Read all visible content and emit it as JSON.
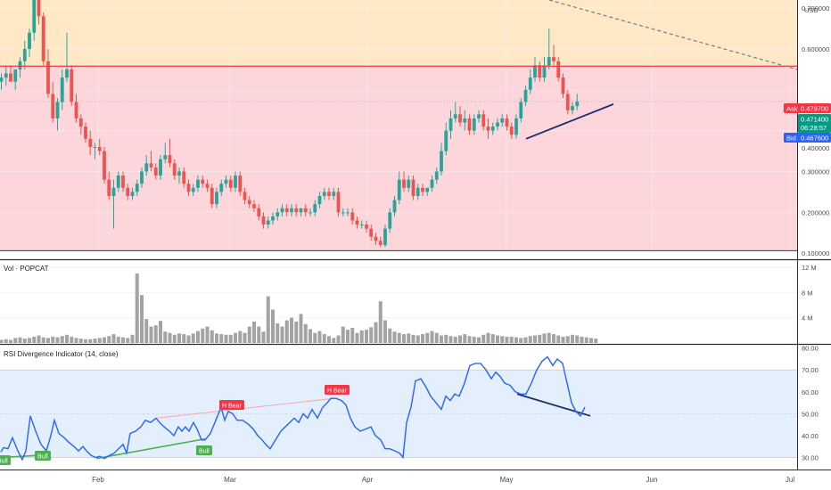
{
  "chart_data": {
    "type": "candlestick",
    "symbol": "POPCAT",
    "currency": "USD",
    "price_axis": {
      "label": "USD",
      "ticks": [
        "0.700000",
        "0.600000",
        "0.300000",
        "0.200000",
        "0.100000"
      ],
      "range": [
        0.085,
        0.72
      ]
    },
    "quote": {
      "ask_label": "Ask",
      "ask": "0.479700",
      "last": "0.471400",
      "countdown": "06:28:57",
      "bid_label": "Bid",
      "bid": "0.467600",
      "obscured_tick": "0.400000"
    },
    "zones": [
      {
        "name": "upper-zone",
        "from": 0.558,
        "to": 0.72,
        "color": "#ffe8c6"
      },
      {
        "name": "lower-zone",
        "from": 0.106,
        "to": 0.558,
        "color": "#fcd6da"
      }
    ],
    "candles": [
      [
        0.52,
        0.54,
        0.5,
        0.53
      ],
      [
        0.53,
        0.56,
        0.51,
        0.54
      ],
      [
        0.54,
        0.56,
        0.52,
        0.52
      ],
      [
        0.52,
        0.55,
        0.5,
        0.55
      ],
      [
        0.55,
        0.58,
        0.53,
        0.57
      ],
      [
        0.57,
        0.62,
        0.55,
        0.6
      ],
      [
        0.6,
        0.65,
        0.58,
        0.64
      ],
      [
        0.64,
        0.74,
        0.62,
        0.73
      ],
      [
        0.73,
        0.75,
        0.66,
        0.68
      ],
      [
        0.68,
        0.69,
        0.56,
        0.57
      ],
      [
        0.57,
        0.6,
        0.48,
        0.49
      ],
      [
        0.49,
        0.52,
        0.42,
        0.43
      ],
      [
        0.43,
        0.48,
        0.4,
        0.47
      ],
      [
        0.47,
        0.55,
        0.45,
        0.53
      ],
      [
        0.53,
        0.64,
        0.52,
        0.55
      ],
      [
        0.55,
        0.56,
        0.46,
        0.47
      ],
      [
        0.47,
        0.49,
        0.42,
        0.43
      ],
      [
        0.43,
        0.44,
        0.39,
        0.41
      ],
      [
        0.41,
        0.42,
        0.37,
        0.38
      ],
      [
        0.38,
        0.4,
        0.34,
        0.36
      ],
      [
        0.36,
        0.37,
        0.33,
        0.36
      ],
      [
        0.36,
        0.38,
        0.34,
        0.35
      ],
      [
        0.35,
        0.36,
        0.27,
        0.28
      ],
      [
        0.28,
        0.3,
        0.23,
        0.24
      ],
      [
        0.24,
        0.28,
        0.16,
        0.26
      ],
      [
        0.26,
        0.3,
        0.25,
        0.29
      ],
      [
        0.29,
        0.3,
        0.25,
        0.26
      ],
      [
        0.26,
        0.27,
        0.23,
        0.24
      ],
      [
        0.24,
        0.26,
        0.23,
        0.25
      ],
      [
        0.25,
        0.28,
        0.24,
        0.27
      ],
      [
        0.27,
        0.31,
        0.26,
        0.3
      ],
      [
        0.3,
        0.34,
        0.29,
        0.32
      ],
      [
        0.32,
        0.35,
        0.3,
        0.31
      ],
      [
        0.31,
        0.32,
        0.28,
        0.29
      ],
      [
        0.29,
        0.34,
        0.28,
        0.33
      ],
      [
        0.33,
        0.37,
        0.32,
        0.34
      ],
      [
        0.34,
        0.38,
        0.31,
        0.32
      ],
      [
        0.32,
        0.33,
        0.28,
        0.29
      ],
      [
        0.29,
        0.31,
        0.27,
        0.3
      ],
      [
        0.3,
        0.31,
        0.26,
        0.27
      ],
      [
        0.27,
        0.28,
        0.24,
        0.25
      ],
      [
        0.25,
        0.27,
        0.24,
        0.26
      ],
      [
        0.26,
        0.29,
        0.25,
        0.28
      ],
      [
        0.28,
        0.29,
        0.26,
        0.27
      ],
      [
        0.27,
        0.28,
        0.25,
        0.26
      ],
      [
        0.26,
        0.27,
        0.21,
        0.22
      ],
      [
        0.22,
        0.26,
        0.21,
        0.25
      ],
      [
        0.25,
        0.28,
        0.24,
        0.27
      ],
      [
        0.27,
        0.29,
        0.26,
        0.28
      ],
      [
        0.28,
        0.29,
        0.25,
        0.26
      ],
      [
        0.26,
        0.3,
        0.25,
        0.29
      ],
      [
        0.29,
        0.3,
        0.24,
        0.25
      ],
      [
        0.25,
        0.26,
        0.22,
        0.23
      ],
      [
        0.23,
        0.24,
        0.21,
        0.22
      ],
      [
        0.22,
        0.23,
        0.2,
        0.21
      ],
      [
        0.21,
        0.22,
        0.18,
        0.19
      ],
      [
        0.19,
        0.2,
        0.16,
        0.17
      ],
      [
        0.17,
        0.19,
        0.16,
        0.18
      ],
      [
        0.18,
        0.2,
        0.17,
        0.19
      ],
      [
        0.19,
        0.21,
        0.18,
        0.2
      ],
      [
        0.2,
        0.22,
        0.19,
        0.21
      ],
      [
        0.21,
        0.22,
        0.19,
        0.2
      ],
      [
        0.2,
        0.22,
        0.19,
        0.21
      ],
      [
        0.21,
        0.22,
        0.19,
        0.2
      ],
      [
        0.2,
        0.21,
        0.19,
        0.21
      ],
      [
        0.21,
        0.22,
        0.19,
        0.2
      ],
      [
        0.2,
        0.21,
        0.19,
        0.2
      ],
      [
        0.2,
        0.23,
        0.19,
        0.22
      ],
      [
        0.22,
        0.25,
        0.21,
        0.24
      ],
      [
        0.24,
        0.26,
        0.23,
        0.25
      ],
      [
        0.25,
        0.26,
        0.23,
        0.24
      ],
      [
        0.24,
        0.26,
        0.23,
        0.25
      ],
      [
        0.25,
        0.26,
        0.19,
        0.2
      ],
      [
        0.2,
        0.21,
        0.19,
        0.2
      ],
      [
        0.2,
        0.21,
        0.19,
        0.2
      ],
      [
        0.2,
        0.21,
        0.17,
        0.18
      ],
      [
        0.18,
        0.19,
        0.16,
        0.17
      ],
      [
        0.17,
        0.18,
        0.16,
        0.17
      ],
      [
        0.17,
        0.18,
        0.15,
        0.16
      ],
      [
        0.16,
        0.17,
        0.13,
        0.14
      ],
      [
        0.14,
        0.15,
        0.12,
        0.13
      ],
      [
        0.13,
        0.14,
        0.115,
        0.12
      ],
      [
        0.12,
        0.17,
        0.115,
        0.16
      ],
      [
        0.16,
        0.21,
        0.15,
        0.2
      ],
      [
        0.2,
        0.24,
        0.19,
        0.23
      ],
      [
        0.23,
        0.3,
        0.22,
        0.28
      ],
      [
        0.28,
        0.3,
        0.25,
        0.26
      ],
      [
        0.26,
        0.29,
        0.25,
        0.28
      ],
      [
        0.28,
        0.29,
        0.23,
        0.24
      ],
      [
        0.24,
        0.27,
        0.23,
        0.26
      ],
      [
        0.26,
        0.27,
        0.24,
        0.25
      ],
      [
        0.25,
        0.26,
        0.24,
        0.26
      ],
      [
        0.26,
        0.29,
        0.25,
        0.28
      ],
      [
        0.28,
        0.31,
        0.27,
        0.3
      ],
      [
        0.3,
        0.37,
        0.29,
        0.35
      ],
      [
        0.35,
        0.42,
        0.34,
        0.4
      ],
      [
        0.4,
        0.45,
        0.38,
        0.43
      ],
      [
        0.43,
        0.47,
        0.42,
        0.44
      ],
      [
        0.44,
        0.46,
        0.41,
        0.42
      ],
      [
        0.42,
        0.45,
        0.4,
        0.43
      ],
      [
        0.43,
        0.44,
        0.39,
        0.4
      ],
      [
        0.4,
        0.44,
        0.39,
        0.43
      ],
      [
        0.43,
        0.45,
        0.42,
        0.44
      ],
      [
        0.44,
        0.45,
        0.4,
        0.41
      ],
      [
        0.41,
        0.43,
        0.38,
        0.4
      ],
      [
        0.4,
        0.42,
        0.39,
        0.41
      ],
      [
        0.41,
        0.43,
        0.4,
        0.42
      ],
      [
        0.42,
        0.44,
        0.41,
        0.43
      ],
      [
        0.43,
        0.44,
        0.4,
        0.41
      ],
      [
        0.41,
        0.42,
        0.38,
        0.39
      ],
      [
        0.39,
        0.44,
        0.38,
        0.43
      ],
      [
        0.43,
        0.48,
        0.42,
        0.47
      ],
      [
        0.47,
        0.51,
        0.46,
        0.5
      ],
      [
        0.5,
        0.55,
        0.49,
        0.53
      ],
      [
        0.53,
        0.58,
        0.52,
        0.56
      ],
      [
        0.56,
        0.57,
        0.52,
        0.53
      ],
      [
        0.53,
        0.58,
        0.52,
        0.56
      ],
      [
        0.56,
        0.65,
        0.55,
        0.58
      ],
      [
        0.58,
        0.61,
        0.56,
        0.57
      ],
      [
        0.57,
        0.58,
        0.52,
        0.53
      ],
      [
        0.53,
        0.54,
        0.48,
        0.49
      ],
      [
        0.49,
        0.5,
        0.44,
        0.45
      ],
      [
        0.45,
        0.47,
        0.44,
        0.46
      ],
      [
        0.46,
        0.49,
        0.45,
        0.4714
      ]
    ],
    "volume": {
      "title": "Vol · POPCAT",
      "ticks": [
        "12 M",
        "8 M",
        "4 M"
      ],
      "range": [
        0,
        12
      ],
      "unit": "M",
      "values": [
        0.5,
        0.6,
        0.5,
        0.8,
        0.9,
        0.7,
        0.8,
        1.0,
        1.2,
        0.9,
        0.8,
        1.0,
        0.9,
        1.1,
        1.3,
        1.0,
        0.8,
        0.7,
        0.6,
        0.6,
        0.7,
        0.8,
        0.9,
        1.1,
        1.4,
        1.0,
        0.9,
        0.8,
        1.3,
        11.0,
        7.6,
        3.8,
        2.6,
        2.8,
        3.5,
        1.8,
        1.6,
        1.3,
        1.5,
        1.4,
        1.2,
        1.5,
        1.9,
        2.3,
        2.6,
        2.0,
        1.5,
        1.4,
        1.3,
        1.3,
        1.6,
        1.9,
        1.6,
        2.6,
        3.4,
        2.6,
        1.8,
        7.4,
        5.3,
        3.1,
        2.6,
        3.6,
        4.0,
        3.4,
        4.6,
        3.0,
        2.2,
        1.6,
        1.9,
        1.4,
        1.1,
        0.8,
        1.2,
        2.6,
        2.1,
        2.4,
        1.6,
        2.0,
        2.1,
        2.5,
        3.3,
        6.6,
        3.6,
        2.3,
        1.8,
        1.6,
        1.4,
        1.5,
        1.3,
        1.2,
        1.4,
        1.6,
        1.9,
        1.6,
        1.2,
        1.3,
        1.1,
        1.0,
        1.2,
        1.4,
        1.1,
        1.0,
        0.9,
        1.3,
        1.6,
        1.4,
        1.2,
        1.1,
        1.0,
        1.0,
        0.9,
        0.8,
        0.9,
        1.1,
        1.2,
        1.3,
        1.5,
        1.6,
        1.4,
        1.2,
        1.0,
        1.1,
        1.3,
        1.2,
        1.0,
        0.9,
        0.8,
        0.7
      ]
    },
    "rsi": {
      "title": "RSI Divergence Indicator (14, close)",
      "ticks": [
        "80.00",
        "70.00",
        "60.00",
        "50.00",
        "40.00",
        "30.00"
      ],
      "range": [
        24.5,
        81.5
      ],
      "band": [
        30,
        70
      ],
      "midline": 50,
      "series": [
        [
          1,
          32.5
        ],
        [
          4,
          34.5
        ],
        [
          9,
          34
        ],
        [
          14,
          39
        ],
        [
          20,
          33
        ],
        [
          25,
          29
        ],
        [
          29,
          33
        ],
        [
          34,
          49
        ],
        [
          40,
          42
        ],
        [
          46,
          36
        ],
        [
          52,
          33
        ],
        [
          57,
          40
        ],
        [
          61,
          47
        ],
        [
          66,
          41
        ],
        [
          72,
          39
        ],
        [
          77,
          37
        ],
        [
          83,
          35
        ],
        [
          88,
          33
        ],
        [
          93,
          35
        ],
        [
          97,
          33
        ],
        [
          102,
          31
        ],
        [
          107,
          30
        ],
        [
          112,
          30.5
        ],
        [
          117,
          29.5
        ],
        [
          123,
          31
        ],
        [
          128,
          32
        ],
        [
          133,
          34
        ],
        [
          138,
          36
        ],
        [
          142,
          32
        ],
        [
          146,
          41
        ],
        [
          152,
          42
        ],
        [
          158,
          44
        ],
        [
          163,
          47
        ],
        [
          169,
          46
        ],
        [
          175,
          48
        ],
        [
          179,
          46
        ],
        [
          184,
          44
        ],
        [
          190,
          42
        ],
        [
          195,
          40
        ],
        [
          200,
          44
        ],
        [
          204,
          42
        ],
        [
          208,
          44
        ],
        [
          212,
          42
        ],
        [
          217,
          46
        ],
        [
          221,
          43
        ],
        [
          226,
          38
        ],
        [
          230,
          38
        ],
        [
          236,
          41
        ],
        [
          243,
          48
        ],
        [
          248,
          53
        ],
        [
          252,
          47
        ],
        [
          256,
          51
        ],
        [
          261,
          50
        ],
        [
          266,
          47
        ],
        [
          272,
          47
        ],
        [
          279,
          45
        ],
        [
          284,
          43
        ],
        [
          289,
          40
        ],
        [
          294,
          38
        ],
        [
          298,
          36
        ],
        [
          303,
          34
        ],
        [
          309,
          38
        ],
        [
          315,
          42
        ],
        [
          320,
          44
        ],
        [
          325,
          46
        ],
        [
          330,
          48
        ],
        [
          335,
          46
        ],
        [
          340,
          50
        ],
        [
          345,
          48
        ],
        [
          350,
          52
        ],
        [
          356,
          48
        ],
        [
          362,
          53
        ],
        [
          367,
          55
        ],
        [
          371,
          57
        ],
        [
          377,
          57
        ],
        [
          383,
          56
        ],
        [
          388,
          54
        ],
        [
          393,
          48
        ],
        [
          398,
          44
        ],
        [
          404,
          42
        ],
        [
          410,
          43
        ],
        [
          416,
          44
        ],
        [
          421,
          40
        ],
        [
          427,
          38
        ],
        [
          432,
          34
        ],
        [
          437,
          34
        ],
        [
          443,
          33
        ],
        [
          448,
          32
        ],
        [
          452,
          30
        ],
        [
          456,
          46
        ],
        [
          461,
          53
        ],
        [
          466,
          65
        ],
        [
          472,
          66
        ],
        [
          478,
          62
        ],
        [
          483,
          58
        ],
        [
          489,
          55
        ],
        [
          495,
          52
        ],
        [
          500,
          58
        ],
        [
          505,
          56
        ],
        [
          510,
          59
        ],
        [
          515,
          58
        ],
        [
          521,
          64
        ],
        [
          527,
          72
        ],
        [
          533,
          73
        ],
        [
          539,
          73
        ],
        [
          545,
          70
        ],
        [
          551,
          66
        ],
        [
          556,
          69
        ],
        [
          561,
          67
        ],
        [
          566,
          64
        ],
        [
          572,
          63
        ],
        [
          578,
          60
        ],
        [
          584,
          59
        ],
        [
          590,
          59
        ],
        [
          596,
          64
        ],
        [
          602,
          70
        ],
        [
          608,
          74
        ],
        [
          614,
          76
        ],
        [
          620,
          72
        ],
        [
          625,
          75
        ],
        [
          631,
          73
        ],
        [
          636,
          64
        ],
        [
          641,
          55
        ],
        [
          646,
          51
        ],
        [
          651,
          49
        ],
        [
          656,
          53
        ]
      ],
      "labels": [
        {
          "text": "H Bear",
          "type": "bear"
        },
        {
          "text": "H Bear",
          "type": "bear"
        },
        {
          "text": "Bull",
          "type": "bull"
        },
        {
          "text": "Bull",
          "type": "bull"
        },
        {
          "text": "Bull",
          "type": "bull"
        }
      ]
    },
    "x_axis": {
      "ticks": [
        "Feb",
        "Mar",
        "Apr",
        "May",
        "Jun",
        "Jul"
      ]
    },
    "colors": {
      "up": "#26a69a",
      "down": "#ef5350",
      "volume": "#a3a3a3",
      "rsi_line": "#2962ff",
      "resistance": "#f23645",
      "trendline": "#1f2e6e",
      "bull_div": "#4caf50",
      "bear_div": "#f7a8a8"
    }
  }
}
